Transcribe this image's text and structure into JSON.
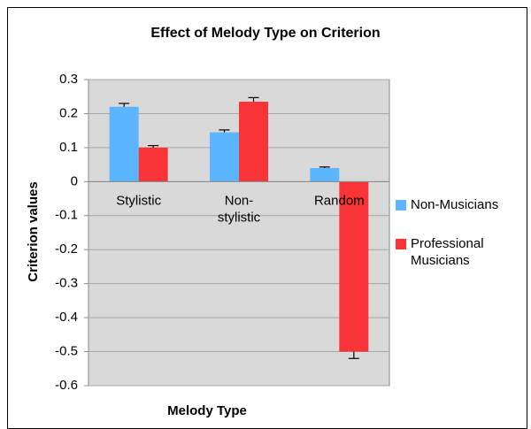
{
  "chart_data": {
    "type": "bar",
    "title": "Effect of Melody Type on Criterion",
    "x_label": "Melody Type",
    "y_label": "Criterion values",
    "categories": [
      "Stylistic",
      "Non-stylistic",
      "Random"
    ],
    "series": [
      {
        "name": "Non-Musicians",
        "color": "#5cb6ff",
        "values": [
          0.22,
          0.145,
          0.04
        ],
        "errors": [
          0.01,
          0.007,
          0.003
        ]
      },
      {
        "name": "Professional Musicians",
        "color": "#f93437",
        "values": [
          0.1,
          0.235,
          -0.5
        ],
        "errors": [
          0.006,
          0.012,
          0.02
        ]
      }
    ],
    "ylim": [
      -0.6,
      0.3
    ],
    "yticks": [
      0.3,
      0.2,
      0.1,
      0,
      -0.1,
      -0.2,
      -0.3,
      -0.4,
      -0.5,
      -0.6
    ],
    "grid": true,
    "legend": "right"
  }
}
